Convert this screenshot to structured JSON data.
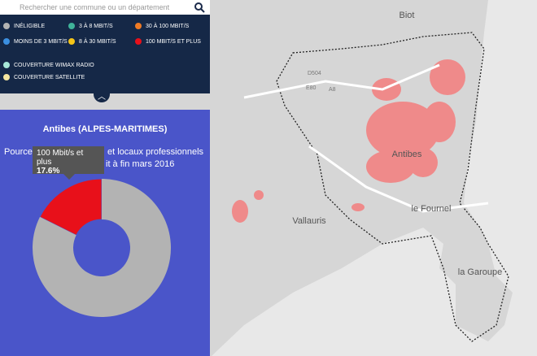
{
  "search": {
    "placeholder": "Rechercher une commune ou un département"
  },
  "legend": {
    "items": [
      {
        "label": "INÉLIGIBLE",
        "color": "#b3b3b3"
      },
      {
        "label": "3 À 8 MBIT/S",
        "color": "#3fb39a"
      },
      {
        "label": "30 À 100 MBIT/S",
        "color": "#f07b25"
      },
      {
        "label": "MOINS DE 3 MBIT/S",
        "color": "#3b8fe0"
      },
      {
        "label": "8 À 30 MBIT/S",
        "color": "#f5c518"
      },
      {
        "label": "100 MBIT/S ET PLUS",
        "color": "#e8101a"
      }
    ],
    "coverage": [
      "COUVERTURE WIMAX RADIO",
      "COUVERTURE SATELLITE"
    ]
  },
  "panel": {
    "title": "Antibes (ALPES-MARITIMES)",
    "subtitle_parts": [
      "Pourcen",
      "et locaux professionnels",
      "it à fin mars 2016"
    ],
    "tooltip": {
      "name": "100 Mbit/s et plus",
      "label": "17.6%"
    },
    "chart_data": {
      "type": "donut",
      "slices": [
        {
          "name": "100 Mbit/s et plus",
          "value": 17.6,
          "value_label": "17.6%",
          "color": "#e8101a"
        },
        {
          "value": 82.4,
          "color": "#b3b3b3"
        }
      ]
    }
  },
  "map": {
    "places": [
      "Biot",
      "Antibes",
      "Vallauris",
      "le Fournel",
      "la Garoupe"
    ],
    "roads": [
      "D504",
      "E80",
      "A8"
    ]
  }
}
